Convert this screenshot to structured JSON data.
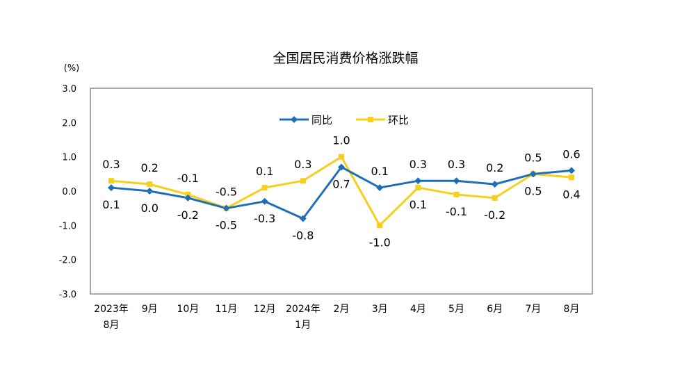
{
  "chart_data": {
    "type": "line",
    "title": "全国居民消费价格涨跌幅",
    "ylabel": "(%)",
    "ylim": [
      -3.0,
      3.0
    ],
    "yticks": [
      "3.0",
      "2.0",
      "1.0",
      "0.0",
      "-1.0",
      "-2.0",
      "-3.0"
    ],
    "grid": false,
    "legend_position": "top-center",
    "categories": [
      {
        "line1": "2023年",
        "line2": "8月"
      },
      {
        "line1": "9月",
        "line2": ""
      },
      {
        "line1": "10月",
        "line2": ""
      },
      {
        "line1": "11月",
        "line2": ""
      },
      {
        "line1": "12月",
        "line2": ""
      },
      {
        "line1": "2024年",
        "line2": "1月"
      },
      {
        "line1": "2月",
        "line2": ""
      },
      {
        "line1": "3月",
        "line2": ""
      },
      {
        "line1": "4月",
        "line2": ""
      },
      {
        "line1": "5月",
        "line2": ""
      },
      {
        "line1": "6月",
        "line2": ""
      },
      {
        "line1": "7月",
        "line2": ""
      },
      {
        "line1": "8月",
        "line2": ""
      }
    ],
    "series": [
      {
        "name": "同比",
        "color": "#1f6eb8",
        "marker": "diamond",
        "values": [
          0.1,
          0.0,
          -0.2,
          -0.5,
          -0.3,
          -0.8,
          0.7,
          0.1,
          0.3,
          0.3,
          0.2,
          0.5,
          0.6
        ],
        "labels": [
          "0.1",
          "0.0",
          "-0.2",
          "-0.5",
          "-0.3",
          "-0.8",
          "0.7",
          "0.1",
          "0.3",
          "0.3",
          "0.2",
          "0.5",
          "0.6"
        ]
      },
      {
        "name": "环比",
        "color": "#f5cf1b",
        "marker": "square",
        "values": [
          0.3,
          0.2,
          -0.1,
          -0.5,
          0.1,
          0.3,
          1.0,
          -1.0,
          0.1,
          -0.1,
          -0.2,
          0.5,
          0.4
        ],
        "labels": [
          "0.3",
          "0.2",
          "-0.1",
          "-0.5",
          "0.1",
          "0.3",
          "1.0",
          "-1.0",
          "0.1",
          "-0.1",
          "-0.2",
          "0.5",
          "0.4"
        ]
      }
    ]
  }
}
